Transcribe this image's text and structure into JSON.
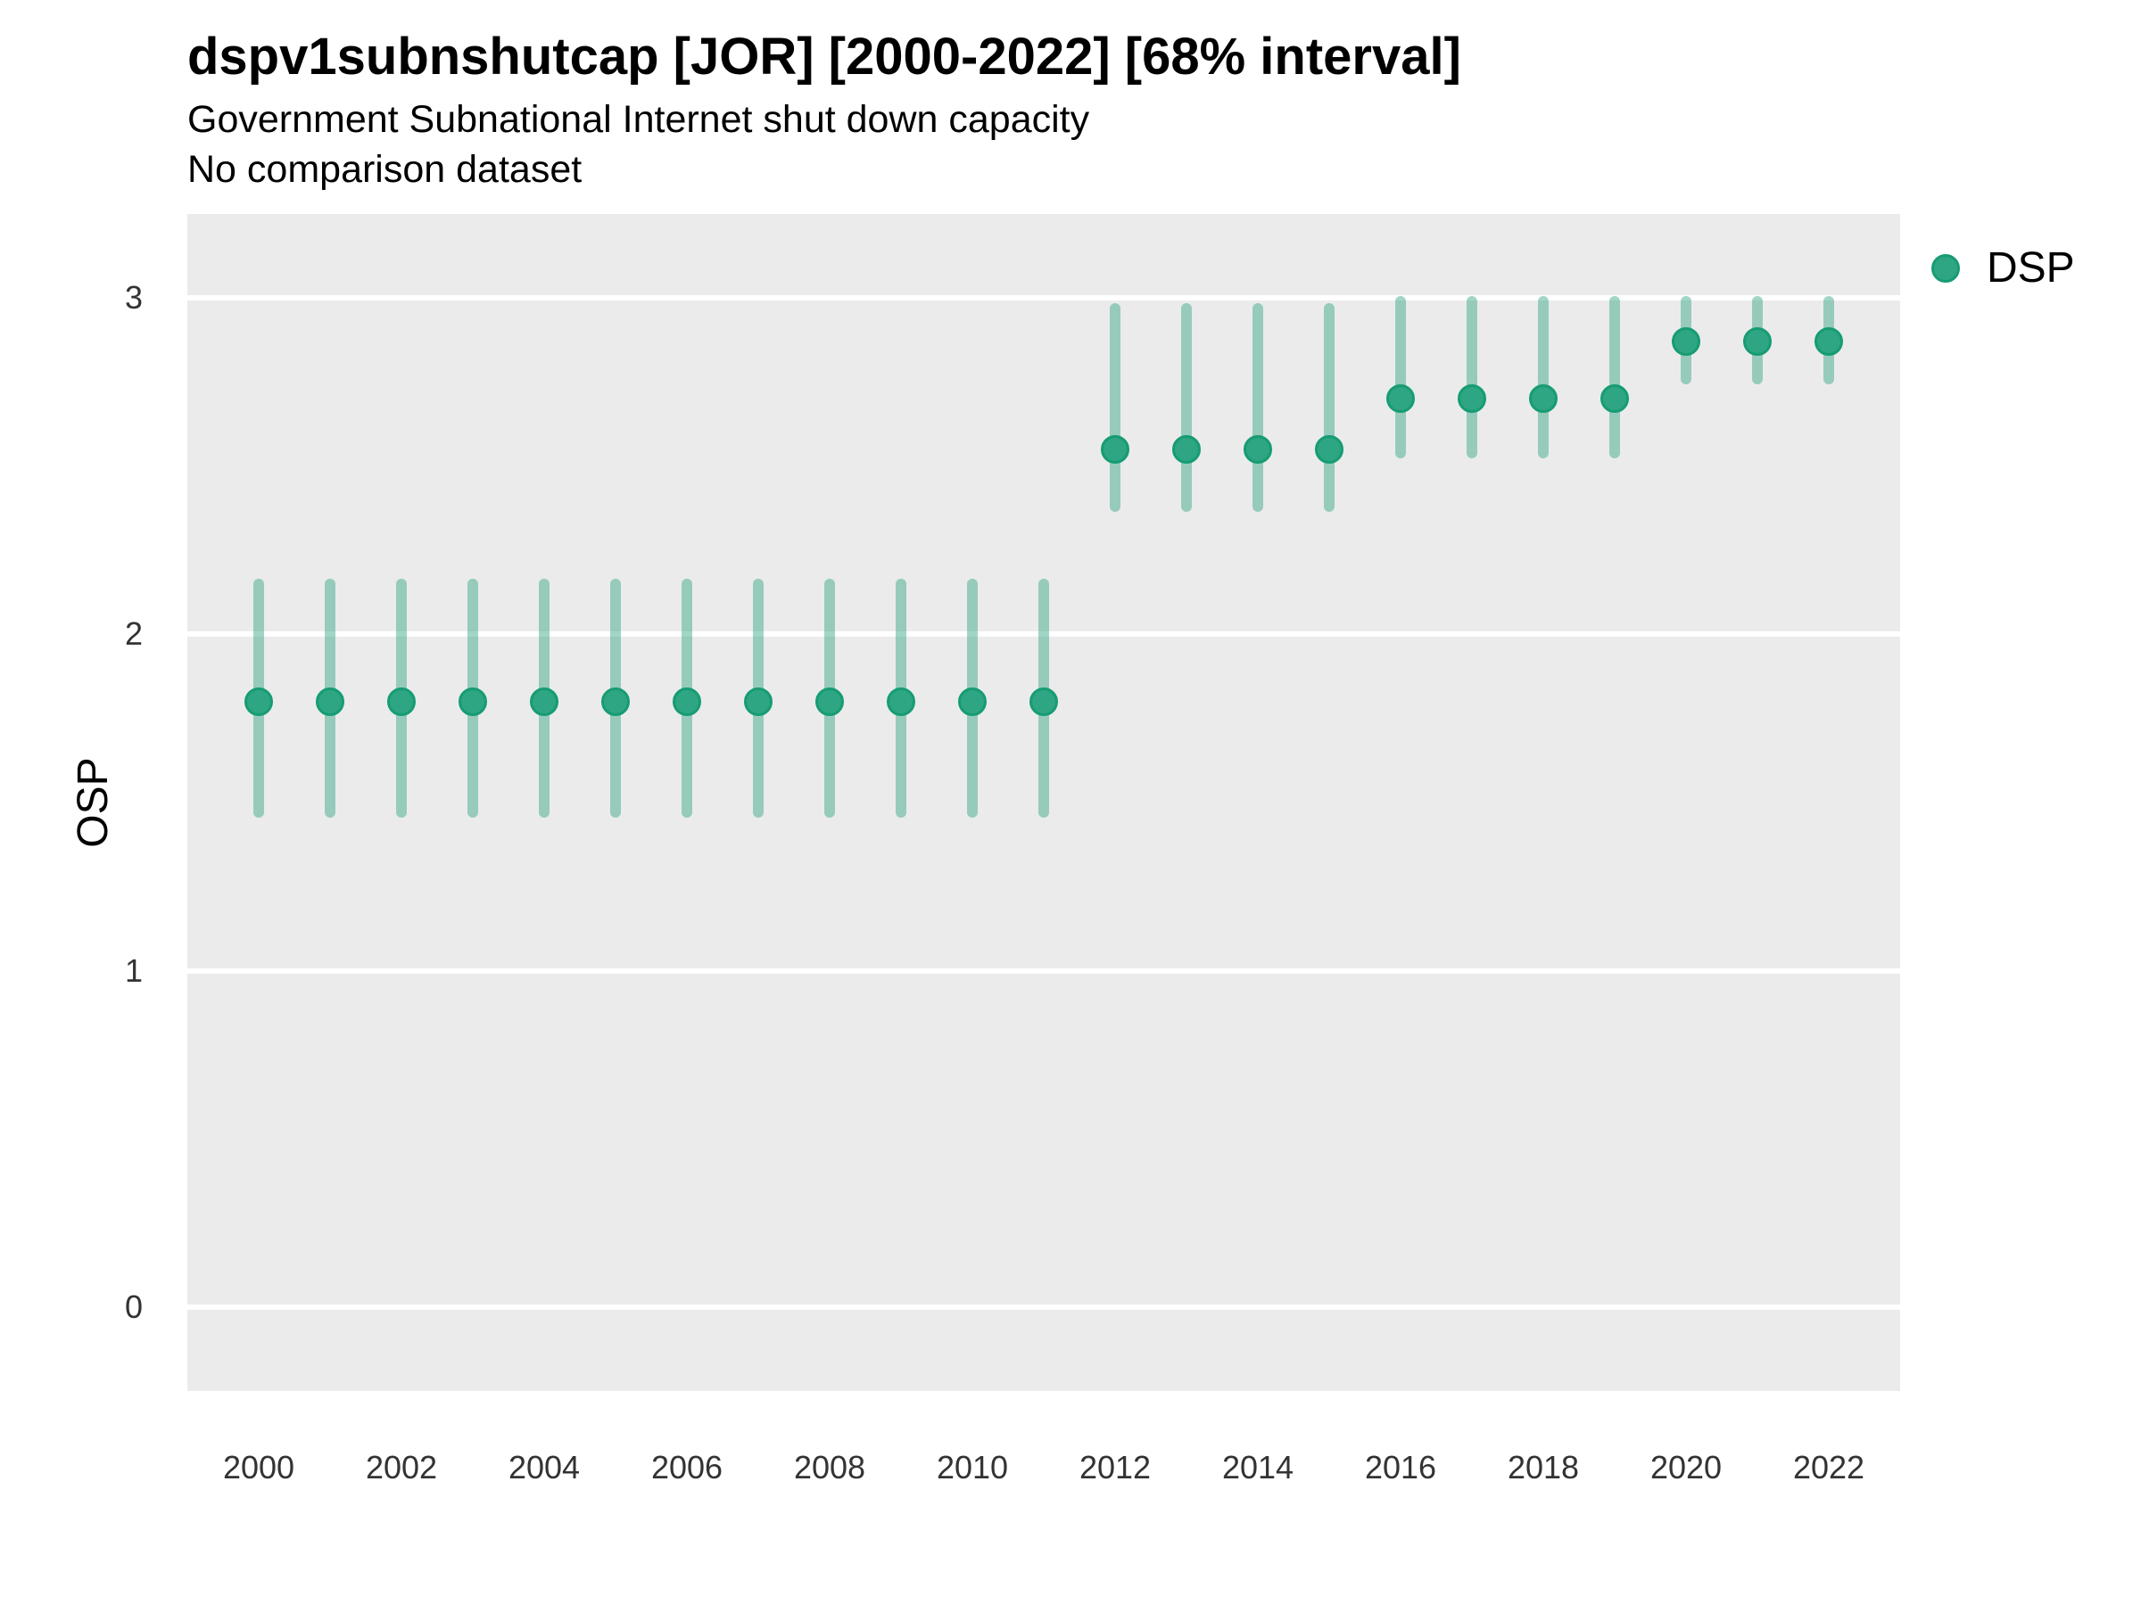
{
  "header": {
    "title": "dspv1subnshutcap [JOR] [2000-2022] [68% interval]",
    "subtitle": "Government Subnational Internet shut down capacity",
    "note": "No comparison dataset"
  },
  "legend": {
    "position": "right",
    "items": [
      {
        "label": "DSP",
        "color": "#2EA583"
      }
    ]
  },
  "colors": {
    "page_bg": "#FFFFFF",
    "panel_bg": "#EBEBEB",
    "gridline": "#FFFFFF",
    "point_fill": "#2EA583",
    "point_stroke": "#169C73",
    "interval_bar": "rgba(46,165,131,0.45)",
    "tick_text": "#333333",
    "title_text": "#000000"
  },
  "chart_data": {
    "type": "scatter",
    "subtype": "pointrange",
    "title": "dspv1subnshutcap [JOR] [2000-2022] [68% interval]",
    "subtitle": "Government Subnational Internet shut down capacity",
    "note": "No comparison dataset",
    "xlabel": "",
    "ylabel": "OSP",
    "interval_level": "68%",
    "grid": "major-horizontal-only",
    "legend_position": "right",
    "xlim": [
      1999,
      2023
    ],
    "ylim": [
      -0.25,
      3.25
    ],
    "x_ticks": [
      2000,
      2002,
      2004,
      2006,
      2008,
      2010,
      2012,
      2014,
      2016,
      2018,
      2020,
      2022
    ],
    "y_ticks": [
      0,
      1,
      2,
      3
    ],
    "series": [
      {
        "name": "DSP",
        "points": [
          {
            "year": 2000,
            "est": 1.8,
            "lo": 1.47,
            "hi": 2.15
          },
          {
            "year": 2001,
            "est": 1.8,
            "lo": 1.47,
            "hi": 2.15
          },
          {
            "year": 2002,
            "est": 1.8,
            "lo": 1.47,
            "hi": 2.15
          },
          {
            "year": 2003,
            "est": 1.8,
            "lo": 1.47,
            "hi": 2.15
          },
          {
            "year": 2004,
            "est": 1.8,
            "lo": 1.47,
            "hi": 2.15
          },
          {
            "year": 2005,
            "est": 1.8,
            "lo": 1.47,
            "hi": 2.15
          },
          {
            "year": 2006,
            "est": 1.8,
            "lo": 1.47,
            "hi": 2.15
          },
          {
            "year": 2007,
            "est": 1.8,
            "lo": 1.47,
            "hi": 2.15
          },
          {
            "year": 2008,
            "est": 1.8,
            "lo": 1.47,
            "hi": 2.15
          },
          {
            "year": 2009,
            "est": 1.8,
            "lo": 1.47,
            "hi": 2.15
          },
          {
            "year": 2010,
            "est": 1.8,
            "lo": 1.47,
            "hi": 2.15
          },
          {
            "year": 2011,
            "est": 1.8,
            "lo": 1.47,
            "hi": 2.15
          },
          {
            "year": 2012,
            "est": 2.55,
            "lo": 2.38,
            "hi": 2.97
          },
          {
            "year": 2013,
            "est": 2.55,
            "lo": 2.38,
            "hi": 2.97
          },
          {
            "year": 2014,
            "est": 2.55,
            "lo": 2.38,
            "hi": 2.97
          },
          {
            "year": 2015,
            "est": 2.55,
            "lo": 2.38,
            "hi": 2.97
          },
          {
            "year": 2016,
            "est": 2.7,
            "lo": 2.54,
            "hi": 2.99
          },
          {
            "year": 2017,
            "est": 2.7,
            "lo": 2.54,
            "hi": 2.99
          },
          {
            "year": 2018,
            "est": 2.7,
            "lo": 2.54,
            "hi": 2.99
          },
          {
            "year": 2019,
            "est": 2.7,
            "lo": 2.54,
            "hi": 2.99
          },
          {
            "year": 2020,
            "est": 2.87,
            "lo": 2.76,
            "hi": 2.99
          },
          {
            "year": 2021,
            "est": 2.87,
            "lo": 2.76,
            "hi": 2.99
          },
          {
            "year": 2022,
            "est": 2.87,
            "lo": 2.76,
            "hi": 2.99
          }
        ]
      }
    ]
  }
}
